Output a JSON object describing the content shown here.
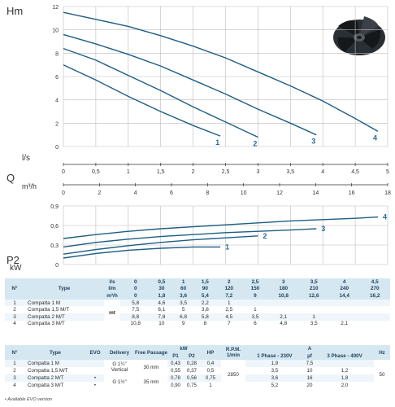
{
  "chart_data": [
    {
      "type": "line",
      "title": "",
      "ylabel": "Hm",
      "xlabel_primary": "l/s",
      "xlabel_secondary": "Q m³/h",
      "xlim": [
        0,
        5
      ],
      "ylim": [
        0,
        12
      ],
      "x_ticks": [
        "0",
        "0,5",
        "1",
        "1,5",
        "2",
        "2,5",
        "3",
        "3,5",
        "4",
        "4,5",
        "5"
      ],
      "x2_ticks": [
        "0",
        "2",
        "4",
        "6",
        "8",
        "10",
        "12",
        "14",
        "16",
        "18"
      ],
      "y_ticks": [
        "0",
        "2",
        "4",
        "6",
        "8",
        "10",
        "12"
      ],
      "grid": true,
      "series": [
        {
          "name": "1",
          "x": [
            0,
            0.5,
            1,
            1.5,
            2,
            2.42
          ],
          "y": [
            7.0,
            5.7,
            4.3,
            3.0,
            1.8,
            0.9
          ]
        },
        {
          "name": "2",
          "x": [
            0,
            0.5,
            1,
            1.5,
            2,
            2.5,
            3.0
          ],
          "y": [
            8.4,
            7.4,
            6.1,
            4.8,
            3.4,
            2.1,
            0.8
          ]
        },
        {
          "name": "3",
          "x": [
            0,
            0.5,
            1,
            1.5,
            2,
            2.5,
            3,
            3.5,
            3.9
          ],
          "y": [
            9.6,
            8.8,
            7.9,
            6.9,
            5.7,
            4.5,
            3.2,
            2.0,
            1.0
          ]
        },
        {
          "name": "4",
          "x": [
            0,
            0.5,
            1,
            1.5,
            2,
            2.5,
            3,
            3.5,
            4,
            4.5,
            4.85
          ],
          "y": [
            11.5,
            10.9,
            10.3,
            9.5,
            8.6,
            7.6,
            6.4,
            5.2,
            3.9,
            2.4,
            1.3
          ]
        }
      ]
    },
    {
      "type": "line",
      "title": "",
      "ylabel": "P2 kW",
      "xlim": [
        0,
        5
      ],
      "ylim": [
        0,
        0.9
      ],
      "y_ticks": [
        "0",
        "0,3",
        "0,6",
        "0,9"
      ],
      "grid": true,
      "series": [
        {
          "name": "1",
          "x": [
            0,
            0.5,
            1,
            1.5,
            2,
            2.42
          ],
          "y": [
            0.1,
            0.17,
            0.22,
            0.25,
            0.27,
            0.27
          ]
        },
        {
          "name": "2",
          "x": [
            0,
            0.5,
            1,
            1.5,
            2,
            2.5,
            3.0
          ],
          "y": [
            0.16,
            0.23,
            0.29,
            0.34,
            0.38,
            0.41,
            0.44
          ]
        },
        {
          "name": "3",
          "x": [
            0,
            0.5,
            1,
            1.5,
            2,
            2.5,
            3,
            3.5,
            3.9
          ],
          "y": [
            0.27,
            0.34,
            0.39,
            0.43,
            0.46,
            0.49,
            0.51,
            0.53,
            0.55
          ]
        },
        {
          "name": "4",
          "x": [
            0,
            0.5,
            1,
            1.5,
            2,
            2.5,
            3,
            3.5,
            4,
            4.5,
            4.85
          ],
          "y": [
            0.4,
            0.46,
            0.51,
            0.55,
            0.58,
            0.61,
            0.64,
            0.67,
            0.69,
            0.71,
            0.73
          ]
        }
      ]
    }
  ],
  "colors": {
    "curve": "#1d5e84",
    "label": "#1f6c9a",
    "grid": "#bcbcbc",
    "header": "#d5e7f1"
  },
  "axis_labels": {
    "hm": "Hm",
    "ls": "l/s",
    "q": "Q",
    "m3h": "m³/h",
    "p2": "P2",
    "kw": "kW"
  },
  "perf_table": {
    "header_n": "N°",
    "header_type": "Type",
    "unit_ls": "l/s",
    "unit_lm": "l/m",
    "unit_m3h": "m³/h",
    "ls_values": [
      "0",
      "0,5",
      "1",
      "1,5",
      "2",
      "2,5",
      "3",
      "3,5",
      "4",
      "4,5"
    ],
    "lm_values": [
      "0",
      "30",
      "60",
      "90",
      "120",
      "150",
      "180",
      "210",
      "240",
      "270"
    ],
    "m3h_values": [
      "0",
      "1,8",
      "3,6",
      "5,4",
      "7,2",
      "9",
      "10,8",
      "12,6",
      "14,4",
      "16,2"
    ],
    "unit_mt": "mt",
    "rows": [
      {
        "n": "1",
        "type": "Compatta 1 M",
        "values": [
          "5,8",
          "4,6",
          "3,5",
          "2,2",
          "1",
          "",
          "",
          "",
          "",
          ""
        ]
      },
      {
        "n": "2",
        "type": "Compatta 1,5 M/T",
        "values": [
          "7,5",
          "6,1",
          "5",
          "3,8",
          "2,5",
          "1",
          "",
          "",
          "",
          ""
        ]
      },
      {
        "n": "3",
        "type": "Compatta 2 M/T",
        "values": [
          "8,8",
          "7,8",
          "6,8",
          "5,8",
          "4,5",
          "3,5",
          "2,1",
          "1",
          "",
          ""
        ]
      },
      {
        "n": "4",
        "type": "Compatta 3 M/T",
        "values": [
          "10,8",
          "10",
          "9",
          "8",
          "7",
          "6",
          "4,8",
          "3,5",
          "2,1",
          ""
        ]
      }
    ]
  },
  "spec_table": {
    "h_n": "N°",
    "h_type": "Type",
    "h_evo": "EVO",
    "h_delivery": "Delivery",
    "h_free": "Free Passage",
    "h_kw": "kW",
    "h_p1": "P1",
    "h_p2": "P2",
    "h_hp": "HP",
    "h_rpm": "R.P.M. 1/min",
    "h_a": "A",
    "h_1ph": "1 Phase - 230V",
    "h_uf": "µf",
    "h_3ph": "3 Phase - 400V",
    "h_hz": "Hz",
    "rows": [
      {
        "n": "1",
        "type": "Compatta 1 M",
        "evo": "",
        "p1": "0,43",
        "p2": "0,28",
        "hp": "0,4",
        "a1": "1,9",
        "uf": "7,5",
        "a3": ""
      },
      {
        "n": "2",
        "type": "Compatta 1,5 M/T",
        "evo": "",
        "p1": "0,55",
        "p2": "0,37",
        "hp": "0,5",
        "a1": "3,5",
        "uf": "10",
        "a3": "1,2"
      },
      {
        "n": "3",
        "type": "Compatta 2 M/T",
        "evo": "•",
        "p1": "0,78",
        "p2": "0,56",
        "hp": "0,75",
        "a1": "3,6",
        "uf": "16",
        "a3": "1,8"
      },
      {
        "n": "4",
        "type": "Compatta 3 M/T",
        "evo": "•",
        "p1": "0,90",
        "p2": "0,75",
        "hp": "1",
        "a1": "5,2",
        "uf": "20",
        "a3": "2,0"
      }
    ],
    "delivery_a": "G 1¼\" Vertical",
    "delivery_b": "G 1½\"",
    "free_a": "30 mm",
    "free_b": "35 mm",
    "rpm": "2850",
    "hz": "50"
  },
  "footnote": "• Available EVO version"
}
